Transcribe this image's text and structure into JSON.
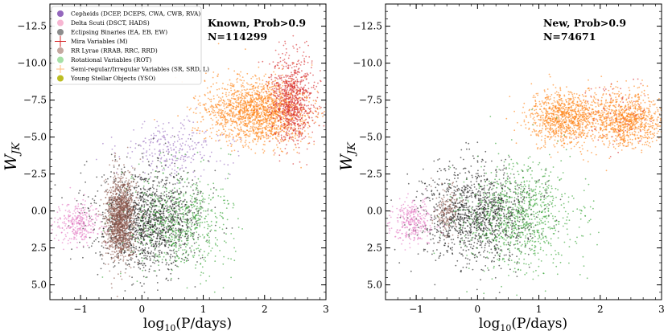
{
  "chart_data": [
    {
      "type": "scatter",
      "panel": "left",
      "xlabel": "log10(P/days)",
      "ylabel": "W_JK",
      "xlim": [
        -1.5,
        3.0
      ],
      "ylim": [
        6.0,
        -14.0
      ],
      "xticks": [
        -1,
        0,
        1,
        2,
        3
      ],
      "yticks": [
        -12.5,
        -10.0,
        -7.5,
        -5.0,
        -2.5,
        0.0,
        2.5,
        5.0
      ],
      "xtick_labels": [
        "−1",
        "0",
        "1",
        "2",
        "3"
      ],
      "ytick_labels": [
        "−12.5",
        "−10.0",
        "−7.5",
        "−5.0",
        "−2.5",
        "0.0",
        "2.5",
        "5.0"
      ],
      "annotation": {
        "line1": "Known, Prob>0.9",
        "line2": "N=114299"
      },
      "legend": [
        {
          "label": "Cepheids (DCEP, DCEPS, CWA, CWB, RVA)",
          "color": "#9467bd"
        },
        {
          "label": "Delta Scuti (DSCT, HADS)",
          "color": "#f7b6d2"
        },
        {
          "label": "Eclipsing Binaries (EA, EB, EW)",
          "color": "#8c8c8c"
        },
        {
          "label": "Mira Variables (M)",
          "color": "#d62728"
        },
        {
          "label": "RR Lyrae (RRAB, RRC, RRD)",
          "color": "#c5a8a0"
        },
        {
          "label": "Rotational Variables (ROT)",
          "color": "#a6e0a6"
        },
        {
          "label": "Semi-regular/Irregular Variables (SR, SRD, L)",
          "color": "#ffbb78"
        },
        {
          "label": "Young Stellar Objects (YSO)",
          "color": "#bcbd22"
        }
      ],
      "series": [
        {
          "name": "Semi-regular/Irregular",
          "color": "#ff7f0e",
          "cx": 1.9,
          "cy": -6.7,
          "sx": 0.42,
          "sy": 1.1,
          "n": 1700
        },
        {
          "name": "Mira",
          "color": "#d62728",
          "cx": 2.45,
          "cy": -7.5,
          "sx": 0.18,
          "sy": 1.5,
          "n": 850
        },
        {
          "name": "Cepheids",
          "color": "#9467bd",
          "cx": 0.5,
          "cy": -4.2,
          "sx": 0.45,
          "sy": 0.9,
          "n": 260
        },
        {
          "name": "Eclipsing Binaries",
          "color": "#111111",
          "cx": 0.1,
          "cy": 0.6,
          "sx": 0.42,
          "sy": 1.6,
          "n": 1500
        },
        {
          "name": "Rotational",
          "color": "#2ca02c",
          "cx": 0.65,
          "cy": 0.8,
          "sx": 0.4,
          "sy": 1.7,
          "n": 650
        },
        {
          "name": "Delta Scuti",
          "color": "#e377c2",
          "cx": -1.05,
          "cy": 0.9,
          "sx": 0.17,
          "sy": 0.7,
          "n": 300
        },
        {
          "name": "RR Lyrae",
          "color": "#8c564b",
          "cx": -0.35,
          "cy": 0.5,
          "sx": 0.12,
          "sy": 1.4,
          "n": 1300
        }
      ]
    },
    {
      "type": "scatter",
      "panel": "right",
      "xlabel": "log10(P/days)",
      "ylabel": "W_JK",
      "xlim": [
        -1.5,
        3.0
      ],
      "ylim": [
        6.0,
        -14.0
      ],
      "xticks": [
        -1,
        0,
        1,
        2,
        3
      ],
      "yticks": [
        -12.5,
        -10.0,
        -7.5,
        -5.0,
        -2.5,
        0.0,
        2.5,
        5.0
      ],
      "xtick_labels": [
        "−1",
        "0",
        "1",
        "2",
        "3"
      ],
      "ytick_labels": [
        "−12.5",
        "−10.0",
        "−7.5",
        "−5.0",
        "−2.5",
        "0.0",
        "2.5",
        "5.0"
      ],
      "annotation": {
        "line1": "New, Prob>0.9",
        "line2": "N=74671"
      },
      "series": [
        {
          "name": "Semi-regular/Irregular (short)",
          "color": "#ff7f0e",
          "cx": 1.45,
          "cy": -6.3,
          "sx": 0.3,
          "sy": 0.9,
          "n": 1000
        },
        {
          "name": "Semi-regular/Irregular (long)",
          "color": "#ff7f0e",
          "cx": 2.45,
          "cy": -6.2,
          "sx": 0.3,
          "sy": 0.9,
          "n": 900
        },
        {
          "name": "Mira",
          "color": "#d62728",
          "cx": 2.3,
          "cy": -7.0,
          "sx": 0.3,
          "sy": 1.2,
          "n": 70
        },
        {
          "name": "Eclipsing Binaries",
          "color": "#111111",
          "cx": 0.0,
          "cy": 0.3,
          "sx": 0.45,
          "sy": 1.6,
          "n": 1300
        },
        {
          "name": "Rotational",
          "color": "#2ca02c",
          "cx": 0.7,
          "cy": 0.3,
          "sx": 0.45,
          "sy": 1.8,
          "n": 900
        },
        {
          "name": "Delta Scuti",
          "color": "#e377c2",
          "cx": -1.05,
          "cy": 0.7,
          "sx": 0.17,
          "sy": 0.7,
          "n": 300
        },
        {
          "name": "RR Lyrae",
          "color": "#8c564b",
          "cx": -0.5,
          "cy": 0.0,
          "sx": 0.1,
          "sy": 0.8,
          "n": 150
        }
      ]
    }
  ]
}
